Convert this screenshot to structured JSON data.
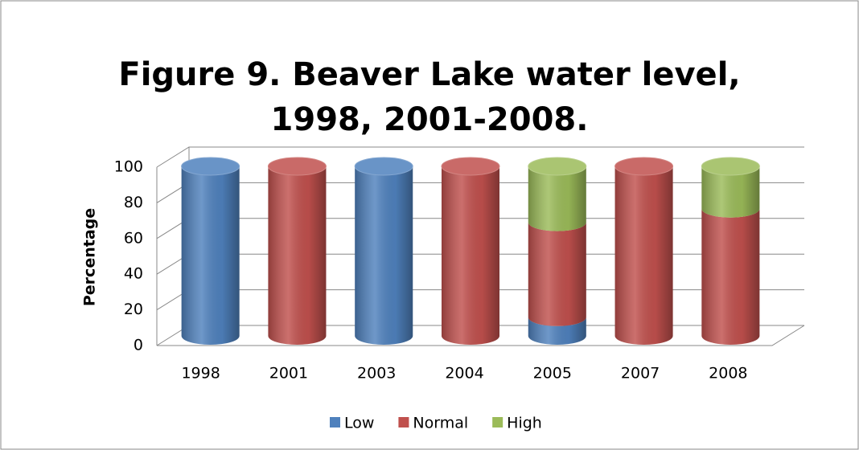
{
  "chart_data": {
    "type": "bar",
    "stacked": true,
    "style": "3d-cylinder",
    "title": "Figure 9. Beaver Lake water level, 1998, 2001-2008.",
    "ylabel": "Percentage",
    "categories": [
      "1998",
      "2001",
      "2003",
      "2004",
      "2005",
      "2007",
      "2008"
    ],
    "series": [
      {
        "name": "Low",
        "color": "#4f81bd",
        "values": [
          100,
          0,
          100,
          0,
          11,
          0,
          0
        ]
      },
      {
        "name": "Normal",
        "color": "#c0504d",
        "values": [
          0,
          100,
          0,
          100,
          56,
          100,
          75
        ]
      },
      {
        "name": "High",
        "color": "#9bbb59",
        "values": [
          0,
          0,
          0,
          0,
          33,
          0,
          25
        ]
      }
    ],
    "ylim": [
      0,
      100
    ],
    "yticks": [
      0,
      20,
      40,
      60,
      80,
      100
    ],
    "grid": true,
    "legend": "bottom"
  }
}
